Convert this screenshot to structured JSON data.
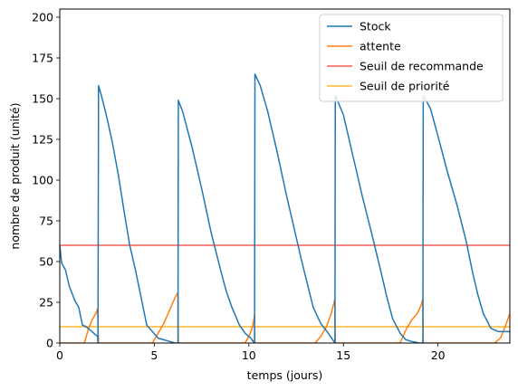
{
  "chart_data": {
    "type": "line",
    "title": "",
    "xlabel": "temps (jours)",
    "ylabel": "nombre de produit (unité)",
    "xlim": [
      0,
      23.8
    ],
    "ylim": [
      0,
      205
    ],
    "xticks": [
      0,
      5,
      10,
      15,
      20
    ],
    "yticks": [
      0,
      25,
      50,
      75,
      100,
      125,
      150,
      175,
      200
    ],
    "grid": false,
    "legend_position": "top-right",
    "series": [
      {
        "name": "Stock",
        "color": "#1f77b4",
        "x": [
          0,
          0.1,
          0.3,
          0.5,
          0.8,
          1.0,
          1.2,
          1.4,
          1.6,
          1.8,
          2.0,
          2.02,
          2.05,
          2.2,
          2.5,
          2.8,
          3.1,
          3.4,
          3.7,
          4.0,
          4.3,
          4.6,
          4.9,
          5.2,
          5.5,
          5.8,
          6.1,
          6.25,
          6.27,
          6.5,
          7.0,
          7.5,
          8.0,
          8.5,
          8.8,
          9.1,
          9.5,
          9.8,
          10.1,
          10.3,
          10.32,
          10.6,
          11.0,
          11.5,
          12.0,
          12.5,
          12.8,
          13.1,
          13.4,
          13.8,
          14.2,
          14.55,
          14.57,
          15.0,
          15.5,
          16.0,
          16.5,
          17.0,
          17.3,
          17.6,
          18.0,
          18.3,
          18.6,
          19.0,
          19.2,
          19.22,
          19.6,
          20.0,
          20.5,
          21.0,
          21.5,
          21.8,
          22.1,
          22.4,
          22.8,
          23.2,
          23.5,
          23.8
        ],
        "values": [
          60,
          49,
          45,
          35,
          26,
          22,
          11,
          10,
          8,
          6,
          4,
          0,
          158,
          152,
          138,
          122,
          103,
          81,
          60,
          45,
          28,
          11,
          7,
          3,
          2,
          1,
          0,
          0,
          149,
          142,
          120,
          95,
          68,
          45,
          32,
          22,
          11,
          6,
          3,
          0,
          165,
          158,
          142,
          117,
          90,
          65,
          50,
          36,
          22,
          12,
          6,
          0,
          152,
          140,
          115,
          90,
          67,
          43,
          28,
          15,
          6,
          2,
          1,
          0,
          0,
          152,
          144,
          127,
          105,
          85,
          62,
          45,
          30,
          18,
          9,
          7,
          7,
          7
        ]
      },
      {
        "name": "attente",
        "color": "#ff7f0e",
        "x": [
          0,
          1.3,
          1.5,
          1.7,
          1.9,
          2.0,
          2.05,
          2.06,
          4.9,
          5.2,
          5.5,
          5.8,
          6.1,
          6.25,
          6.27,
          9.8,
          10.0,
          10.2,
          10.3,
          10.32,
          13.5,
          13.8,
          14.1,
          14.35,
          14.55,
          14.57,
          18.0,
          18.3,
          18.6,
          18.9,
          19.1,
          19.2,
          19.22,
          23.0,
          23.3,
          23.55,
          23.8
        ],
        "values": [
          0,
          0,
          8,
          14,
          18,
          21,
          0,
          0,
          0,
          6,
          12,
          20,
          28,
          31,
          0,
          0,
          4,
          10,
          17,
          0,
          0,
          4,
          10,
          18,
          27,
          0,
          0,
          8,
          14,
          18,
          23,
          27,
          0,
          0,
          3,
          10,
          18
        ]
      },
      {
        "name": "Seuil de recommande",
        "color": "#ff5a55",
        "x": [
          0,
          23.8
        ],
        "values": [
          60,
          60
        ]
      },
      {
        "name": "Seuil de priorité",
        "color": "#ffb62e",
        "x": [
          0,
          23.8
        ],
        "values": [
          10,
          10
        ]
      }
    ]
  }
}
